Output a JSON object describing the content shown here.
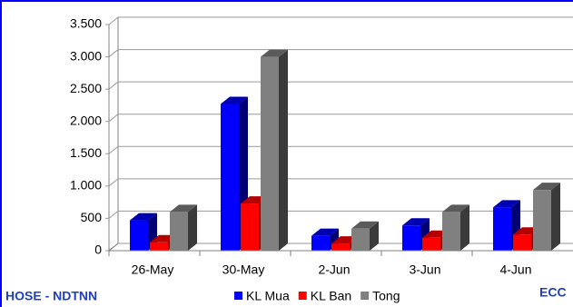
{
  "chart_data": {
    "type": "bar3d",
    "categories": [
      "26-May",
      "30-May",
      "2-Jun",
      "3-Jun",
      "4-Jun"
    ],
    "series": [
      {
        "name": "KL Mua",
        "color": "#0000ff",
        "values": [
          470,
          2270,
          230,
          390,
          670
        ]
      },
      {
        "name": "KL Ban",
        "color": "#ff0000",
        "values": [
          130,
          730,
          110,
          200,
          250
        ]
      },
      {
        "name": "Tong",
        "color": "#808080",
        "values": [
          600,
          3000,
          340,
          600,
          940
        ]
      }
    ],
    "ylim": [
      0,
      3500
    ],
    "yticks": [
      0,
      500,
      {
        "value": 1000,
        "label": "1.000"
      },
      {
        "value": 1500,
        "label": "1.500"
      },
      {
        "value": 2000,
        "label": "2.000"
      },
      {
        "value": 2500,
        "label": "2.500"
      },
      {
        "value": 3000,
        "label": "3.000"
      },
      {
        "value": 3500,
        "label": "3.500"
      }
    ],
    "grid": true,
    "annotations": [
      "HOSE - NDTNN",
      "ECC"
    ]
  }
}
